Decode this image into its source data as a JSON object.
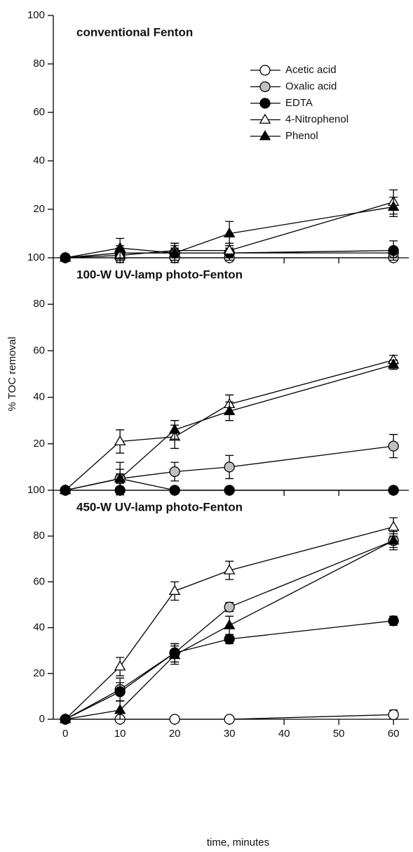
{
  "chart_data": [
    {
      "type": "line",
      "title": "conventional Fenton",
      "x": [
        0,
        10,
        20,
        30,
        60
      ],
      "xlim": [
        -2.2,
        62.8
      ],
      "ylim": [
        0,
        100
      ],
      "yticks": [
        20,
        40,
        60,
        80,
        100
      ],
      "legend": "upper center",
      "series": [
        {
          "name": "Acetic acid",
          "marker": "circle",
          "color": "#ffffff",
          "values": [
            0,
            0,
            0,
            0,
            0
          ],
          "errors": [
            0,
            1,
            1,
            1,
            1
          ]
        },
        {
          "name": "Oxalic acid",
          "marker": "circle",
          "color": "#c0c0c0",
          "values": [
            0,
            2,
            2,
            2,
            2
          ],
          "errors": [
            0,
            2,
            2,
            2,
            2
          ]
        },
        {
          "name": "EDTA",
          "marker": "circle",
          "color": "#000000",
          "values": [
            0,
            2,
            2,
            2,
            3
          ],
          "errors": [
            0,
            3,
            3,
            3,
            4
          ]
        },
        {
          "name": "4-Nitrophenol",
          "marker": "triangle",
          "color": "#ffffff",
          "values": [
            0,
            1,
            3,
            3,
            23
          ],
          "errors": [
            0,
            3,
            3,
            3,
            5
          ]
        },
        {
          "name": "Phenol",
          "marker": "triangle",
          "color": "#000000",
          "values": [
            0,
            4,
            2,
            10,
            21
          ],
          "errors": [
            0,
            4,
            4,
            5,
            4
          ]
        }
      ]
    },
    {
      "type": "line",
      "title": "100-W UV-lamp photo-Fenton",
      "ylabel": "% TOC removal",
      "x": [
        0,
        10,
        20,
        30,
        60
      ],
      "xlim": [
        -2.2,
        62.8
      ],
      "ylim": [
        0,
        100
      ],
      "yticks": [
        20,
        40,
        60,
        80,
        100
      ],
      "series": [
        {
          "marker": "circle",
          "color": "#ffffff",
          "values": [
            0,
            5,
            0,
            0,
            0
          ],
          "errors": [
            0,
            2,
            1,
            1,
            1
          ]
        },
        {
          "marker": "circle",
          "color": "#c0c0c0",
          "values": [
            0,
            5,
            8,
            10,
            19
          ],
          "errors": [
            0,
            7,
            4,
            5,
            5
          ]
        },
        {
          "marker": "circle",
          "color": "#000000",
          "values": [
            0,
            0,
            0,
            0,
            0
          ],
          "errors": [
            0,
            1,
            1,
            1,
            1
          ]
        },
        {
          "marker": "triangle",
          "color": "#ffffff",
          "values": [
            0,
            21,
            23,
            37,
            56
          ],
          "errors": [
            0,
            5,
            5,
            4,
            2
          ]
        },
        {
          "marker": "triangle",
          "color": "#000000",
          "values": [
            0,
            5,
            26,
            34,
            54
          ],
          "errors": [
            0,
            4,
            4,
            4,
            2
          ]
        }
      ]
    },
    {
      "type": "line",
      "title": "450-W UV-lamp photo-Fenton",
      "xlabel": "time, minutes",
      "x": [
        0,
        10,
        20,
        30,
        60
      ],
      "xlim": [
        -2.2,
        62.8
      ],
      "xticks": [
        0,
        10,
        20,
        30,
        40,
        50,
        60
      ],
      "ylim": [
        0,
        100
      ],
      "yticks": [
        0,
        20,
        40,
        60,
        80,
        100
      ],
      "series": [
        {
          "marker": "circle",
          "color": "#ffffff",
          "values": [
            0,
            0,
            0,
            0,
            2
          ],
          "errors": [
            0,
            1,
            1,
            1,
            2
          ]
        },
        {
          "marker": "circle",
          "color": "#c0c0c0",
          "values": [
            0,
            13,
            29,
            49,
            78
          ],
          "errors": [
            0,
            5,
            4,
            2,
            3
          ]
        },
        {
          "marker": "circle",
          "color": "#000000",
          "values": [
            0,
            12,
            29,
            35,
            43
          ],
          "errors": [
            0,
            4,
            4,
            2,
            2
          ]
        },
        {
          "marker": "triangle",
          "color": "#ffffff",
          "values": [
            0,
            23,
            56,
            65,
            84
          ],
          "errors": [
            0,
            4,
            4,
            4,
            4
          ]
        },
        {
          "marker": "triangle",
          "color": "#000000",
          "values": [
            0,
            4,
            28,
            41,
            78
          ],
          "errors": [
            0,
            4,
            4,
            4,
            4
          ]
        }
      ]
    }
  ]
}
